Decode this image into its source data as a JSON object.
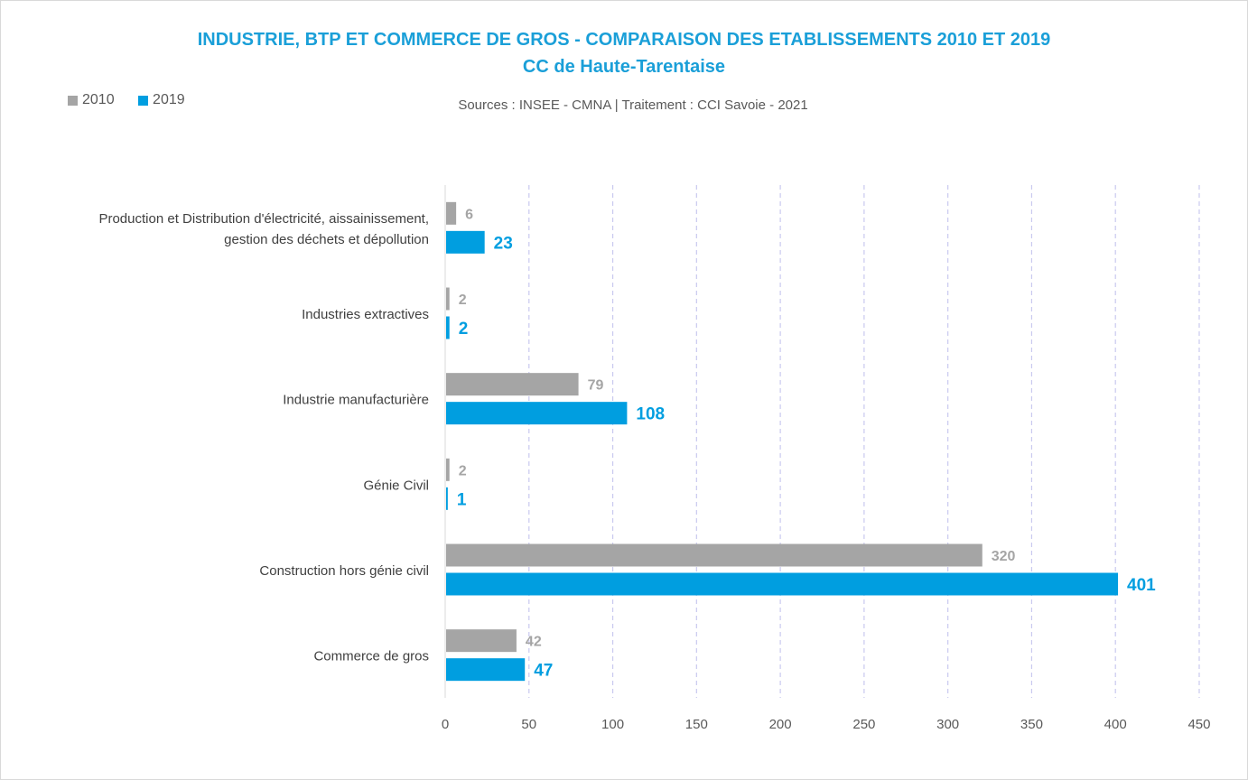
{
  "chart_data": {
    "type": "bar",
    "orientation": "horizontal",
    "title": "INDUSTRIE, BTP ET COMMERCE DE GROS - COMPARAISON DES ETABLISSEMENTS 2010 ET 2019",
    "subtitle": "CC de Haute-Tarentaise",
    "source": "Sources : INSEE - CMNA  |  Traitement : CCI Savoie - 2021",
    "categories": [
      [
        "Production et Distribution d'électricité, aissainissement,",
        "gestion des déchets et dépollution"
      ],
      [
        "Industries extractives"
      ],
      [
        "Industrie manufacturière"
      ],
      [
        "Génie Civil"
      ],
      [
        "Construction hors génie civil"
      ],
      [
        "Commerce de gros"
      ]
    ],
    "series": [
      {
        "name": "2010",
        "color": "#a5a5a5",
        "values": [
          6,
          2,
          79,
          2,
          320,
          42
        ]
      },
      {
        "name": "2019",
        "color": "#009ee0",
        "values": [
          23,
          2,
          108,
          1,
          401,
          47
        ]
      }
    ],
    "xlim": [
      0,
      450
    ],
    "xticks": [
      0,
      50,
      100,
      150,
      200,
      250,
      300,
      350,
      400,
      450
    ],
    "xlabel": "",
    "ylabel": "",
    "grid": true,
    "legend": "top-left"
  }
}
